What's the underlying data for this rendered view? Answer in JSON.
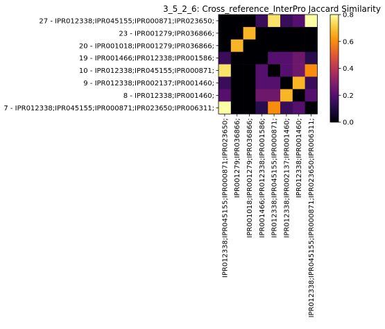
{
  "chart_data": {
    "type": "heatmap",
    "title": "3_5_2_6: Cross_reference_InterPro Jaccard Similarity",
    "y_labels": [
      "27 - IPR012338;IPR045155;IPR000871;IPR023650;",
      "23 - IPR001279;IPR036866;",
      "20 - IPR001018;IPR001279;IPR036866;",
      "19 - IPR001466;IPR012338;IPR001586;",
      "10 - IPR012338;IPR045155;IPR000871;",
      "9 - IPR012338;IPR002137;IPR001460;",
      "8 - IPR012338;IPR001460;",
      "7 - IPR012338;IPR045155;IPR000871;IPR023650;IPR006311;"
    ],
    "x_labels": [
      "IPR012338;IPR045155;IPR000871;IPR023650;",
      "IPR001279;IPR036866;",
      "IPR001018;IPR001279;IPR036866;",
      "IPR001466;IPR012338;IPR001586;",
      "IPR012338;IPR045155;IPR000871;",
      "IPR012338;IPR002137;IPR001460;",
      "IPR012338;IPR001460;",
      "IPR012338;IPR045155;IPR000871;IPR023650;IPR006311;"
    ],
    "values": [
      [
        0.0,
        0.0,
        0.0,
        0.15,
        0.75,
        0.15,
        0.2,
        0.8
      ],
      [
        0.0,
        0.0,
        0.67,
        0.0,
        0.0,
        0.0,
        0.0,
        0.0
      ],
      [
        0.0,
        0.67,
        0.0,
        0.0,
        0.0,
        0.0,
        0.0,
        0.0
      ],
      [
        0.15,
        0.0,
        0.0,
        0.0,
        0.2,
        0.2,
        0.25,
        0.12
      ],
      [
        0.75,
        0.0,
        0.0,
        0.2,
        0.0,
        0.2,
        0.25,
        0.6
      ],
      [
        0.15,
        0.0,
        0.0,
        0.2,
        0.2,
        0.0,
        0.67,
        0.15
      ],
      [
        0.2,
        0.0,
        0.0,
        0.25,
        0.25,
        0.67,
        0.0,
        0.2
      ],
      [
        0.8,
        0.0,
        0.0,
        0.12,
        0.6,
        0.15,
        0.2,
        0.0
      ]
    ],
    "colormap": "inferno",
    "vmin": 0.0,
    "vmax": 0.8,
    "colorbar_ticks": [
      "0.0",
      "0.2",
      "0.4",
      "0.6",
      "0.8"
    ],
    "colorbar_values": [
      0.0,
      0.2,
      0.4,
      0.6,
      0.8
    ]
  }
}
